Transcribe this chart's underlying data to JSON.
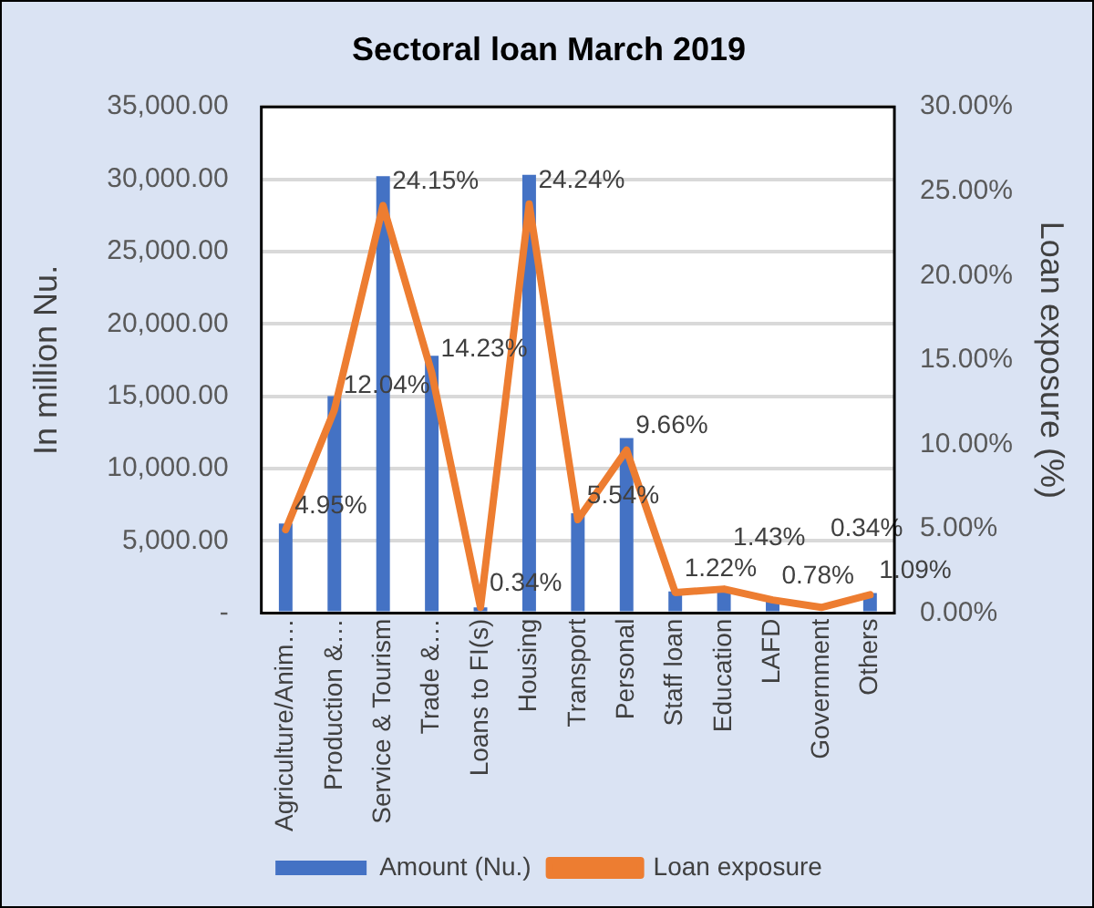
{
  "chart_data": {
    "type": "bar",
    "title": "Sectoral loan March 2019",
    "ylabel": "In million Nu.",
    "y2label": "Loan exposure (%)",
    "categories": [
      "Agriculture/Anim…",
      "Production &…",
      "Service & Tourism",
      "Trade &…",
      "Loans to FI(s)",
      "Housing",
      "Transport",
      "Personal",
      "Staff loan",
      "Education",
      "LAFD",
      "Government",
      "Others"
    ],
    "series": [
      {
        "name": "Amount (Nu.)",
        "type": "bar",
        "color": "#4472c4",
        "values": [
          6200,
          15000,
          30200,
          17800,
          400,
          30300,
          6900,
          12100,
          1500,
          1800,
          1000,
          null,
          1400
        ]
      },
      {
        "name": "Loan exposure",
        "type": "line",
        "axis": "y2",
        "color": "#ed7d31",
        "values": [
          4.95,
          12.04,
          24.15,
          14.23,
          0.34,
          24.24,
          5.54,
          9.66,
          1.22,
          1.43,
          0.78,
          0.34,
          1.09
        ],
        "value_labels": [
          "4.95%",
          "12.04%",
          "24.15%",
          "14.23%",
          "0.34%",
          "24.24%",
          "5.54%",
          "9.66%",
          "1.22%",
          "1.43%",
          "0.78%",
          "0.34%",
          "1.09%"
        ]
      }
    ],
    "ylim": [
      0,
      35000
    ],
    "yticks": [
      {
        "value": 0,
        "label": "-"
      },
      {
        "value": 5000,
        "label": "5,000.00"
      },
      {
        "value": 10000,
        "label": "10,000.00"
      },
      {
        "value": 15000,
        "label": "15,000.00"
      },
      {
        "value": 20000,
        "label": "20,000.00"
      },
      {
        "value": 25000,
        "label": "25,000.00"
      },
      {
        "value": 30000,
        "label": "30,000.00"
      },
      {
        "value": 35000,
        "label": "35,000.00"
      }
    ],
    "y2lim": [
      0,
      30
    ],
    "y2ticks": [
      {
        "value": 0,
        "label": "0.00%"
      },
      {
        "value": 5,
        "label": "5.00%"
      },
      {
        "value": 10,
        "label": "10.00%"
      },
      {
        "value": 15,
        "label": "15.00%"
      },
      {
        "value": 20,
        "label": "20.00%"
      },
      {
        "value": 25,
        "label": "25.00%"
      },
      {
        "value": 30,
        "label": "30.00%"
      }
    ],
    "grid": "y",
    "legend": "bottom",
    "marker": "none",
    "line_style": "solid"
  }
}
